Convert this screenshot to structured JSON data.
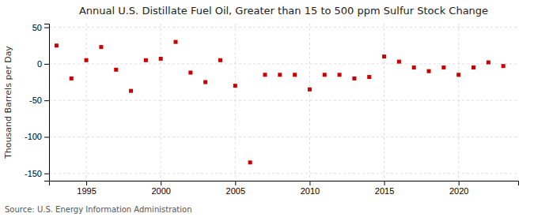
{
  "chart_data": {
    "type": "scatter",
    "title": "Annual U.S. Distillate Fuel Oil, Greater than 15 to 500 ppm Sulfur Stock Change",
    "ylabel": "Thousand Barrels per Day",
    "annotations": [
      "Source: U.S. Energy Information Administration"
    ],
    "x": [
      1993,
      1994,
      1995,
      1996,
      1997,
      1998,
      1999,
      2000,
      2001,
      2002,
      2003,
      2004,
      2005,
      2006,
      2007,
      2008,
      2009,
      2010,
      2011,
      2012,
      2013,
      2014,
      2015,
      2016,
      2017,
      2018,
      2019,
      2020,
      2021,
      2022,
      2023
    ],
    "values": [
      25,
      -20,
      5,
      23,
      -8,
      -37,
      5,
      7,
      30,
      -12,
      -25,
      5,
      -30,
      -135,
      -15,
      -15,
      -15,
      -35,
      -15,
      -15,
      -20,
      -18,
      10,
      3,
      -5,
      -10,
      -5,
      -15,
      -5,
      2,
      -3
    ],
    "color": "#cc0000",
    "marker": "square",
    "xlim": [
      1992.5,
      2024
    ],
    "ylim": [
      -160,
      55
    ],
    "xticks": [
      1995,
      2000,
      2005,
      2010,
      2015,
      2020
    ],
    "yticks": [
      -150,
      -100,
      -50,
      0,
      50
    ],
    "grid": true
  }
}
